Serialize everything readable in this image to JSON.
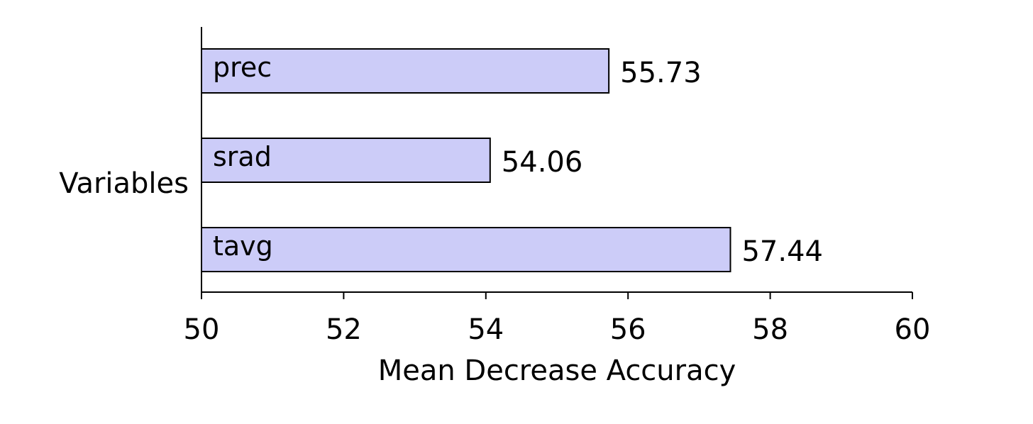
{
  "chart_data": {
    "type": "bar",
    "orientation": "horizontal",
    "categories": [
      "prec",
      "srad",
      "tavg"
    ],
    "values": [
      55.73,
      54.06,
      57.44
    ],
    "value_labels": [
      "55.73",
      "54.06",
      "57.44"
    ],
    "xlabel": "Mean Decrease Accuracy",
    "ylabel": "Variables",
    "xlim": [
      50,
      60
    ],
    "xticks": [
      50,
      52,
      54,
      56,
      58,
      60
    ],
    "xtick_labels": [
      "50",
      "52",
      "54",
      "56",
      "58",
      "60"
    ],
    "grid": false,
    "bar_fill": "#ccccf8",
    "bar_stroke": "#000000"
  }
}
